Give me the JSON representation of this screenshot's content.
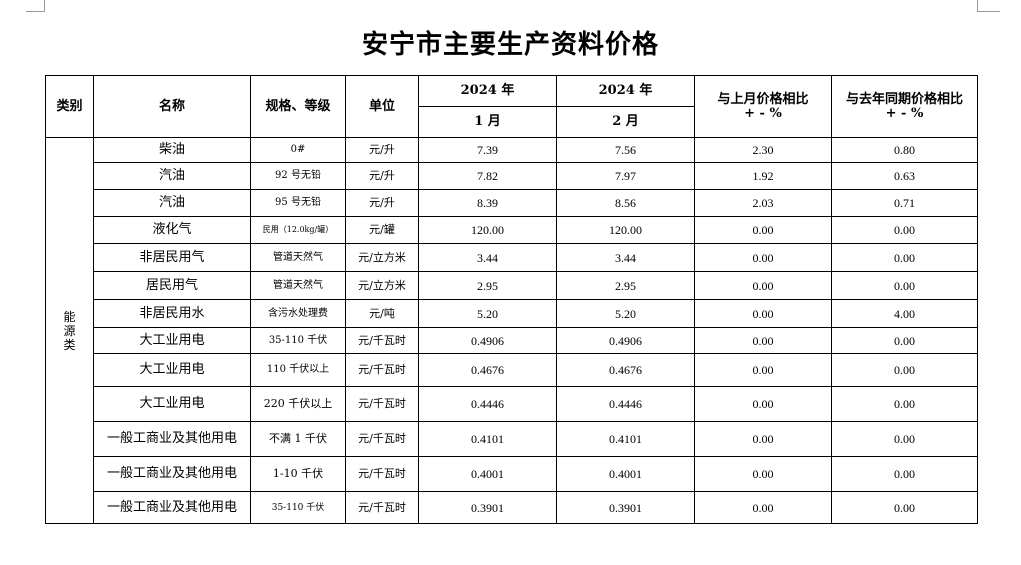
{
  "title": "安宁市主要生产资料价格",
  "header": {
    "category": "类别",
    "name": "名称",
    "spec": "规格、等级",
    "unit": "单位",
    "period1_year": "2024 年",
    "period1_month": "1 月",
    "period2_year": "2024 年",
    "period2_month": "2 月",
    "mom_line1": "与上月价格相比",
    "mom_line2": "+ - %",
    "yoy_line1": "与去年同期价格相比",
    "yoy_line2": "+ - %"
  },
  "category": [
    "能",
    "源",
    "类"
  ],
  "rows": [
    {
      "name": "柴油",
      "spec": "0#",
      "unit": "元/升",
      "jan": "7.39",
      "feb": "7.56",
      "mom": "2.30",
      "yoy": "0.80"
    },
    {
      "name": "汽油",
      "spec": "92 号无铅",
      "unit": "元/升",
      "jan": "7.82",
      "feb": "7.97",
      "mom": "1.92",
      "yoy": "0.63"
    },
    {
      "name": "汽油",
      "spec": "95 号无铅",
      "unit": "元/升",
      "jan": "8.39",
      "feb": "8.56",
      "mom": "2.03",
      "yoy": "0.71"
    },
    {
      "name": "液化气",
      "spec": "民用（12.0kg/罐）",
      "unit": "元/罐",
      "jan": "120.00",
      "feb": "120.00",
      "mom": "0.00",
      "yoy": "0.00"
    },
    {
      "name": "非居民用气",
      "spec": "管道天然气",
      "unit": "元/立方米",
      "jan": "3.44",
      "feb": "3.44",
      "mom": "0.00",
      "yoy": "0.00"
    },
    {
      "name": "居民用气",
      "spec": "管道天然气",
      "unit": "元/立方米",
      "jan": "2.95",
      "feb": "2.95",
      "mom": "0.00",
      "yoy": "0.00"
    },
    {
      "name": "非居民用水",
      "spec": "含污水处理费",
      "unit": "元/吨",
      "jan": "5.20",
      "feb": "5.20",
      "mom": "0.00",
      "yoy": "4.00"
    },
    {
      "name": "大工业用电",
      "spec": "35-110 千伏",
      "unit": "元/千瓦时",
      "jan": "0.4906",
      "feb": "0.4906",
      "mom": "0.00",
      "yoy": "0.00"
    },
    {
      "name": "大工业用电",
      "spec": "110 千伏以上",
      "unit": "元/千瓦时",
      "jan": "0.4676",
      "feb": "0.4676",
      "mom": "0.00",
      "yoy": "0.00"
    },
    {
      "name": "大工业用电",
      "spec": "220 千伏以上",
      "unit": "元/千瓦时",
      "jan": "0.4446",
      "feb": "0.4446",
      "mom": "0.00",
      "yoy": "0.00"
    },
    {
      "name": "一般工商业及其他用电",
      "spec": "不满 1 千伏",
      "unit": "元/千瓦时",
      "jan": "0.4101",
      "feb": "0.4101",
      "mom": "0.00",
      "yoy": "0.00"
    },
    {
      "name": "一般工商业及其他用电",
      "spec": "1-10 千伏",
      "unit": "元/千瓦时",
      "jan": "0.4001",
      "feb": "0.4001",
      "mom": "0.00",
      "yoy": "0.00"
    },
    {
      "name": "一般工商业及其他用电",
      "spec": "35-110 千伏",
      "unit": "元/千瓦时",
      "jan": "0.3901",
      "feb": "0.3901",
      "mom": "0.00",
      "yoy": "0.00"
    }
  ]
}
